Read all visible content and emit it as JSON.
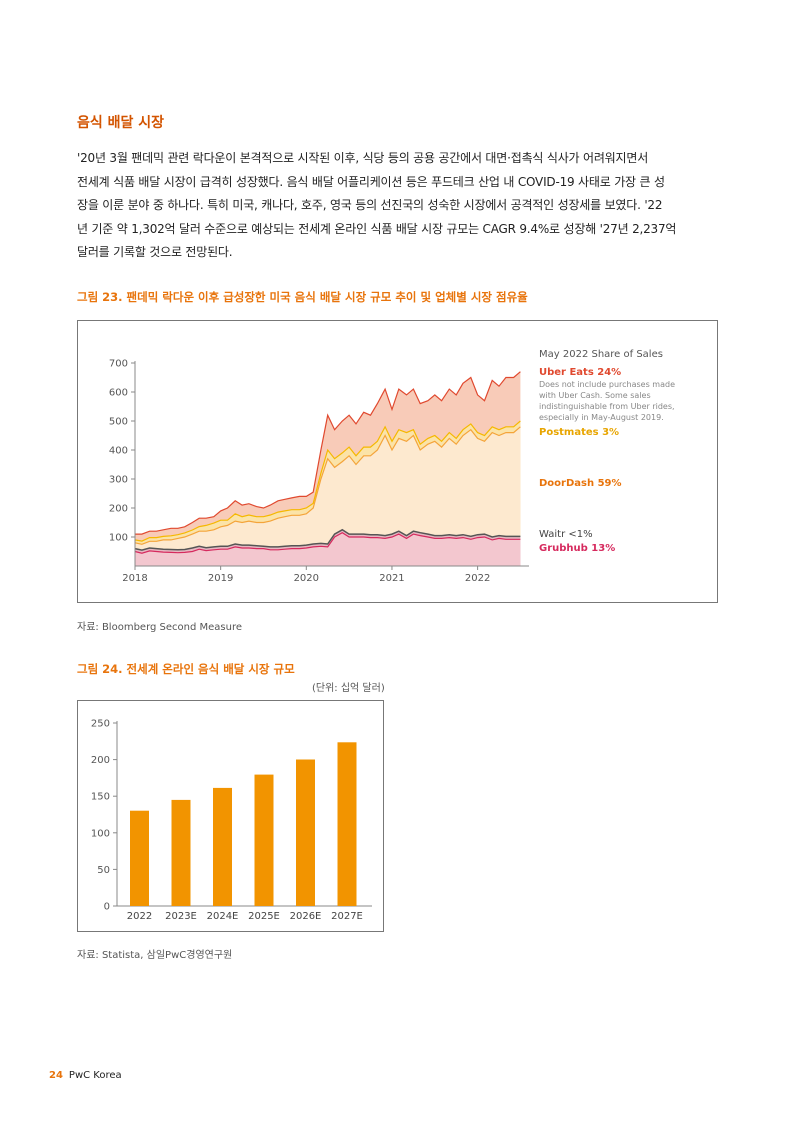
{
  "section": {
    "title": "음식 배달 시장"
  },
  "paragraph_lines": [
    "'20년 3월 팬데믹 관련 락다운이 본격적으로 시작된 이후, 식당 등의 공용 공간에서 대면·접촉식 식사가 어려워지면서",
    "전세계 식품 배달 시장이 급격히 성장했다. 음식 배달 어플리케이션 등은 푸드테크 산업 내 COVID-19 사태로 가장 큰 성",
    "장을 이룬 분야 중 하나다. 특히 미국, 캐나다, 호주, 영국 등의 선진국의 성숙한 시장에서 공격적인 성장세를 보였다. '22",
    "년 기준 약 1,302억 달러 수준으로 예상되는 전세계 온라인 식품 배달 시장 규모는 CAGR 9.4%로 성장해 '27년 2,237억",
    "달러를 기록할 것으로 전망된다."
  ],
  "figure23": {
    "title": "그림 23. 팬데믹 락다운 이후 급성장한 미국 음식 배달 시장 규모 추이 및 업체별 시장 점유율",
    "source": "자료: Bloomberg Second Measure",
    "legend": {
      "heading": "May 2022 Share of Sales",
      "ubereats": "Uber Eats 24%",
      "ubereats_note_lines": [
        "Does not include purchases made",
        "with Uber Cash. Some sales",
        "indistinguishable from Uber rides,",
        "especially in May-August 2019."
      ],
      "postmates": "Postmates 3%",
      "doordash": "DoorDash 59%",
      "waitr": "Waitr <1%",
      "grubhub": "Grubhub 13%"
    }
  },
  "figure24": {
    "title": "그림 24. 전세계 온라인 음식 배달 시장 규모",
    "unit": "(단위: 십억 달러)",
    "source": "자료: Statista, 삼일PwC경영연구원"
  },
  "footer": {
    "page": "24",
    "brand": "PwC Korea"
  },
  "colors": {
    "accent": "#e8740c",
    "title_orange": "#d35400",
    "ubereats": "#e0492f",
    "postmates": "#f5b800",
    "doordash": "#f4a43a",
    "grubhub": "#d62a5e",
    "waitr": "#555555",
    "bar": "#f29400"
  },
  "chart_data": [
    {
      "type": "area",
      "title": "",
      "xlabel": "",
      "ylabel": "",
      "xlim": [
        2018,
        2022.6
      ],
      "ylim": [
        0,
        700
      ],
      "y_ticks": [
        100,
        200,
        300,
        400,
        500,
        600,
        700
      ],
      "x_ticks": [
        "2018",
        "2019",
        "2020",
        "2021",
        "2022"
      ],
      "x": [
        2018,
        2018.08,
        2018.17,
        2018.25,
        2018.33,
        2018.42,
        2018.5,
        2018.58,
        2018.67,
        2018.75,
        2018.83,
        2018.92,
        2019,
        2019.08,
        2019.17,
        2019.25,
        2019.33,
        2019.42,
        2019.5,
        2019.58,
        2019.67,
        2019.75,
        2019.83,
        2019.92,
        2020,
        2020.08,
        2020.17,
        2020.25,
        2020.33,
        2020.42,
        2020.5,
        2020.58,
        2020.67,
        2020.75,
        2020.83,
        2020.92,
        2021,
        2021.08,
        2021.17,
        2021.25,
        2021.33,
        2021.42,
        2021.5,
        2021.58,
        2021.67,
        2021.75,
        2021.83,
        2021.92,
        2022,
        2022.08,
        2022.17,
        2022.25,
        2022.33,
        2022.42,
        2022.5
      ],
      "series": [
        {
          "name": "Grubhub",
          "values": [
            50,
            44,
            52,
            50,
            48,
            47,
            46,
            47,
            50,
            58,
            53,
            56,
            58,
            58,
            66,
            62,
            62,
            60,
            60,
            56,
            56,
            58,
            60,
            60,
            62,
            66,
            68,
            66,
            100,
            115,
            100,
            100,
            100,
            98,
            98,
            95,
            100,
            110,
            95,
            110,
            105,
            100,
            95,
            95,
            98,
            95,
            98,
            92,
            98,
            100,
            90,
            95,
            92,
            92,
            92
          ]
        },
        {
          "name": "Waitr",
          "values": [
            60,
            55,
            62,
            60,
            58,
            57,
            56,
            57,
            62,
            68,
            63,
            66,
            68,
            68,
            76,
            72,
            72,
            70,
            68,
            66,
            66,
            68,
            70,
            70,
            72,
            76,
            78,
            76,
            110,
            125,
            110,
            110,
            110,
            108,
            108,
            105,
            110,
            120,
            105,
            120,
            115,
            110,
            105,
            105,
            108,
            105,
            108,
            102,
            108,
            110,
            100,
            105,
            102,
            102,
            102
          ]
        },
        {
          "name": "DoorDash",
          "values": [
            80,
            75,
            85,
            85,
            90,
            90,
            95,
            100,
            110,
            120,
            120,
            125,
            135,
            140,
            155,
            150,
            155,
            150,
            150,
            155,
            165,
            170,
            175,
            175,
            180,
            200,
            300,
            370,
            340,
            360,
            380,
            350,
            380,
            380,
            400,
            450,
            400,
            440,
            430,
            450,
            400,
            420,
            430,
            410,
            440,
            420,
            450,
            470,
            440,
            430,
            460,
            450,
            460,
            460,
            480
          ]
        },
        {
          "name": "Postmates",
          "values": [
            90,
            86,
            98,
            98,
            102,
            104,
            108,
            114,
            124,
            136,
            140,
            148,
            158,
            158,
            180,
            170,
            176,
            170,
            170,
            176,
            186,
            190,
            194,
            194,
            200,
            216,
            320,
            400,
            370,
            390,
            410,
            380,
            410,
            410,
            430,
            480,
            430,
            470,
            460,
            470,
            420,
            440,
            450,
            430,
            460,
            440,
            470,
            490,
            460,
            450,
            480,
            470,
            480,
            480,
            500
          ]
        },
        {
          "name": "Uber Eats",
          "values": [
            110,
            110,
            120,
            120,
            125,
            130,
            130,
            135,
            150,
            165,
            165,
            170,
            190,
            200,
            225,
            210,
            215,
            205,
            200,
            210,
            225,
            230,
            235,
            240,
            240,
            255,
            400,
            520,
            470,
            500,
            520,
            490,
            530,
            520,
            560,
            610,
            540,
            610,
            590,
            610,
            560,
            570,
            590,
            570,
            610,
            590,
            630,
            650,
            590,
            570,
            640,
            620,
            650,
            650,
            670
          ]
        }
      ]
    },
    {
      "type": "bar",
      "title": "",
      "xlabel": "",
      "ylabel": "",
      "ylim": [
        0,
        250
      ],
      "y_ticks": [
        0,
        50,
        100,
        150,
        200,
        250
      ],
      "categories": [
        "2022",
        "2023E",
        "2024E",
        "2025E",
        "2026E",
        "2027E"
      ],
      "values": [
        130.2,
        144.9,
        161.3,
        179.5,
        200.2,
        223.7
      ]
    }
  ]
}
